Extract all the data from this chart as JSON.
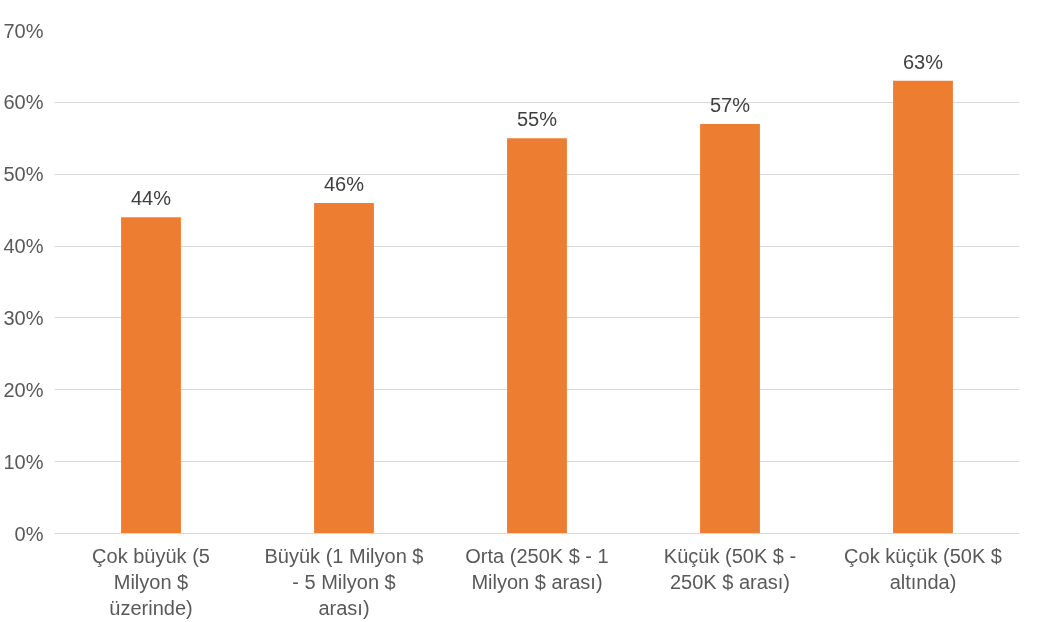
{
  "chart_data": {
    "type": "bar",
    "categories": [
      "Çok büyük (5 Milyon $ üzerinde)",
      "Büyük (1 Milyon $ - 5 Milyon $ arası)",
      "Orta (250K $ - 1 Milyon $ arası)",
      "Küçük (50K $ - 250K $ arası)",
      "Çok küçük (50K $ altında)"
    ],
    "values": [
      44,
      46,
      55,
      57,
      63
    ],
    "color": "#ed7d31",
    "ylim": [
      0,
      70
    ],
    "yticks": [
      {
        "value": 0,
        "label": "0%"
      },
      {
        "value": 10,
        "label": "10%"
      },
      {
        "value": 20,
        "label": "20%"
      },
      {
        "value": 30,
        "label": "30%"
      },
      {
        "value": 40,
        "label": "40%"
      },
      {
        "value": 50,
        "label": "50%"
      },
      {
        "value": 60,
        "label": "60%"
      },
      {
        "value": 70,
        "label": "70%"
      }
    ],
    "value_labels": [
      "44%",
      "46%",
      "55%",
      "57%",
      "63%"
    ],
    "grid": "y"
  }
}
